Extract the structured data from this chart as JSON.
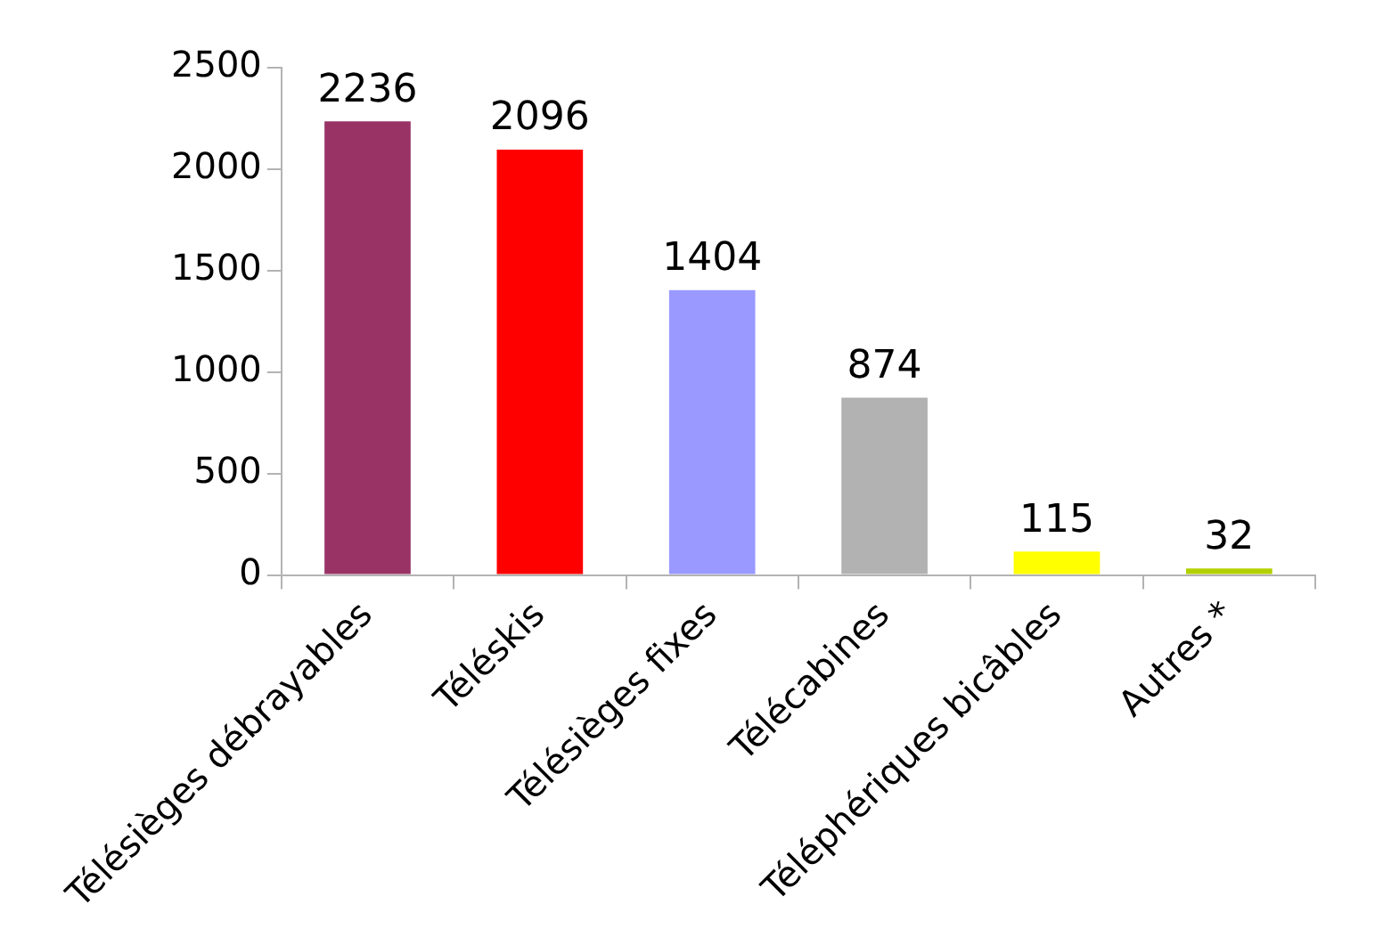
{
  "chart_data": {
    "type": "bar",
    "categories": [
      "Télésièges débrayables",
      "Téléskis",
      "Télésièges fixes",
      "Télécabines",
      "Téléphériques bicâbles",
      "Autres *"
    ],
    "values": [
      2236,
      2096,
      1404,
      874,
      115,
      32
    ],
    "colors": [
      "#993366",
      "#ff0000",
      "#9999ff",
      "#b2b2b2",
      "#ffff00",
      "#b2d000"
    ],
    "ylim": [
      0,
      2500
    ],
    "yticks": [
      0,
      500,
      1000,
      1500,
      2000,
      2500
    ],
    "grid": false,
    "legend": false,
    "data_labels": true
  }
}
